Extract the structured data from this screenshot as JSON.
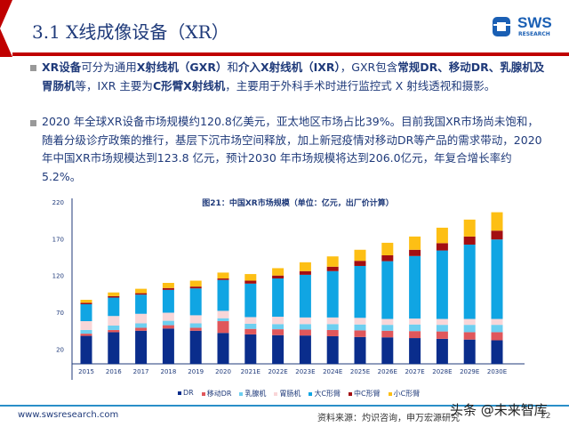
{
  "header": {
    "title": "3.1 X线成像设备（XR）",
    "logo_text": "SWS",
    "logo_sub": "RESEARCH"
  },
  "bullets": [
    {
      "segments": [
        {
          "t": "XR设备",
          "b": true
        },
        {
          "t": "可分为通用",
          "b": false
        },
        {
          "t": "X射线机（GXR）",
          "b": true
        },
        {
          "t": "和",
          "b": false
        },
        {
          "t": "介入X射线机（IXR）",
          "b": true
        },
        {
          "t": "，GXR包含",
          "b": false
        },
        {
          "t": "常规DR、移动DR、乳腺机及胃肠机",
          "b": true
        },
        {
          "t": "等，IXR 主要为",
          "b": false
        },
        {
          "t": "C形臂X射线机",
          "b": true
        },
        {
          "t": "，主要用于外科手术时进行监控式 X 射线透视和摄影。",
          "b": false
        }
      ]
    },
    {
      "segments": [
        {
          "t": "2020 年全球XR设备市场规模约120.8亿美元，亚太地区市场占比39%。目前我国XR市场尚未饱和，随着分级诊疗政策的推行，基层下沉市场空间释放，加上新冠疫情对移动DR等产品的需求带动，2020年中国XR市场规模达到123.8 亿元，预计2030 年市场规模将达到206.0亿元，年复合增长率约5.2%。",
          "b": false
        }
      ]
    }
  ],
  "chart_data": {
    "type": "bar",
    "stacked": true,
    "title": "图21：中国XR市场规模（单位：亿元，出厂价计算）",
    "categories": [
      "2015",
      "2016",
      "2017",
      "2018",
      "2019",
      "2020",
      "2021E",
      "2022E",
      "2023E",
      "2024E",
      "2025E",
      "2026E",
      "2027E",
      "2028E",
      "2029E",
      "2030E"
    ],
    "ylim": [
      0,
      220
    ],
    "yticks": [
      20,
      70,
      120,
      170,
      220
    ],
    "grid": false,
    "legend_position": "bottom",
    "series": [
      {
        "name": "DR",
        "color": "#0a2d8c",
        "values": [
          38,
          43,
          45,
          48,
          45,
          42,
          40,
          39,
          38.5,
          37.5,
          36.5,
          36,
          35,
          34,
          33,
          32
        ]
      },
      {
        "name": "移动DR",
        "color": "#e0575b",
        "values": [
          3,
          3,
          4,
          4.5,
          4,
          16,
          7.5,
          8,
          8,
          8.5,
          9,
          9,
          9.5,
          10,
          10,
          11
        ]
      },
      {
        "name": "乳腺机",
        "color": "#6dcff0",
        "values": [
          5,
          6,
          6,
          6,
          6,
          4,
          7,
          7,
          7.5,
          8,
          8,
          8,
          9,
          9,
          10,
          10
        ]
      },
      {
        "name": "胃肠机",
        "color": "#f9d6d8",
        "values": [
          12,
          13,
          13,
          11,
          11,
          10,
          9,
          10,
          9,
          9,
          9,
          8,
          8,
          8,
          8,
          8
        ]
      },
      {
        "name": "大C形臂",
        "color": "#10a5e3",
        "values": [
          23,
          25,
          26,
          31,
          36.5,
          42,
          45.5,
          52,
          58,
          63,
          70.5,
          78.5,
          85,
          93,
          101,
          108
        ]
      },
      {
        "name": "中C形臂",
        "color": "#a30e12",
        "values": [
          2,
          2,
          2,
          2.5,
          2.5,
          2,
          4,
          4,
          5,
          6,
          7,
          8,
          8.5,
          10,
          11,
          12
        ]
      },
      {
        "name": "小C形臂",
        "color": "#fdbf14",
        "values": [
          4,
          5,
          6,
          7,
          8,
          8,
          9,
          10,
          12,
          14,
          15,
          17,
          18,
          21,
          23,
          25
        ]
      }
    ]
  },
  "footer": {
    "url": "www.swsresearch.com",
    "source": "资料来源：灼识咨询，申万宏源研究",
    "page": "22",
    "watermark": "头条 @未来智库"
  }
}
